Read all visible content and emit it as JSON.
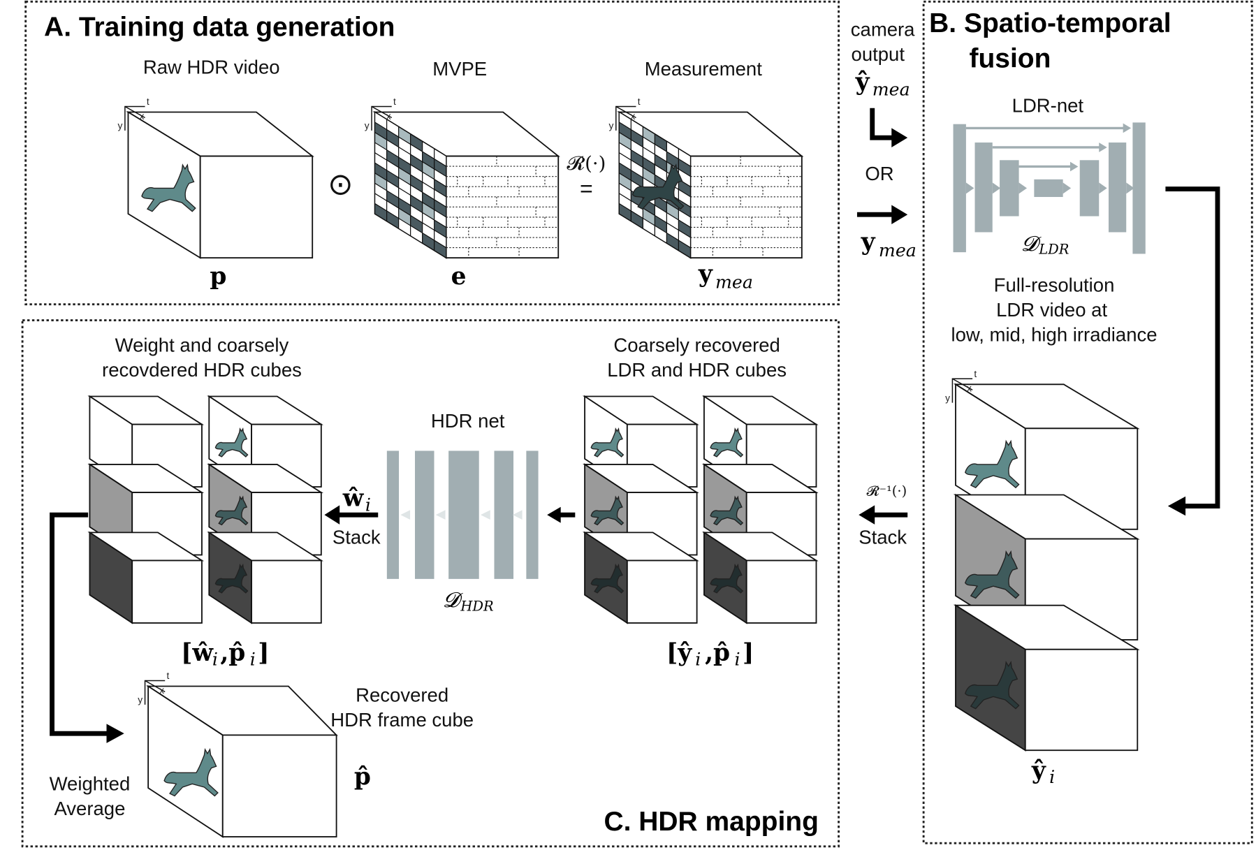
{
  "panel_a": {
    "title": "A. Training data generation",
    "labels": [
      "Raw HDR video",
      "MVPE",
      "Measurement"
    ],
    "symbols": {
      "p": "p",
      "e": "e",
      "y": "y",
      "mea": "mea",
      "odot": "⊙",
      "R": "𝓡(·)",
      "eq": "="
    }
  },
  "middle": {
    "camera": "camera",
    "output": "output",
    "yhat": "ŷ",
    "mea": "mea",
    "or": "OR",
    "y": "y",
    "rinv": "𝓡⁻¹(·)",
    "stack": "Stack"
  },
  "panel_b": {
    "title_line1": "B. Spatio-temporal",
    "title_line2": "fusion",
    "ldr_net": "LDR-net",
    "d_symbol": "𝓓",
    "d_sub": "LDR",
    "desc": [
      "Full-resolution",
      "LDR video at",
      "low, mid, high irradiance"
    ],
    "yhat_i": "ŷ",
    "i": "i"
  },
  "panel_c": {
    "title": "C. HDR mapping",
    "left_caption": [
      "Weight and coarsely",
      "recovdered HDR cubes"
    ],
    "right_caption": [
      "Coarsely recovered",
      "LDR and HDR cubes"
    ],
    "hdr_net": "HDR net",
    "d_symbol": "𝓓",
    "d_sub": "HDR",
    "w_hat": "ŵ",
    "i": "i",
    "stack": "Stack",
    "left_set": "[ŵ",
    "left_set_p": ",p̂",
    "right_set": "[ŷ",
    "right_set_p": ",p̂",
    "close": "]",
    "recovered": [
      "Recovered",
      "HDR frame cube"
    ],
    "p_hat": "p̂",
    "weighted": [
      "Weighted",
      "Average"
    ]
  },
  "axes": {
    "t": "t",
    "x": "x",
    "y": "y"
  },
  "colors": {
    "deer": "#5f8a8a",
    "net": "#a1aeb2",
    "gray_face": "#9a9a9a",
    "dark_face": "#454545",
    "mask_dark": "#4a5a60",
    "mask_light": "#a9babe"
  }
}
